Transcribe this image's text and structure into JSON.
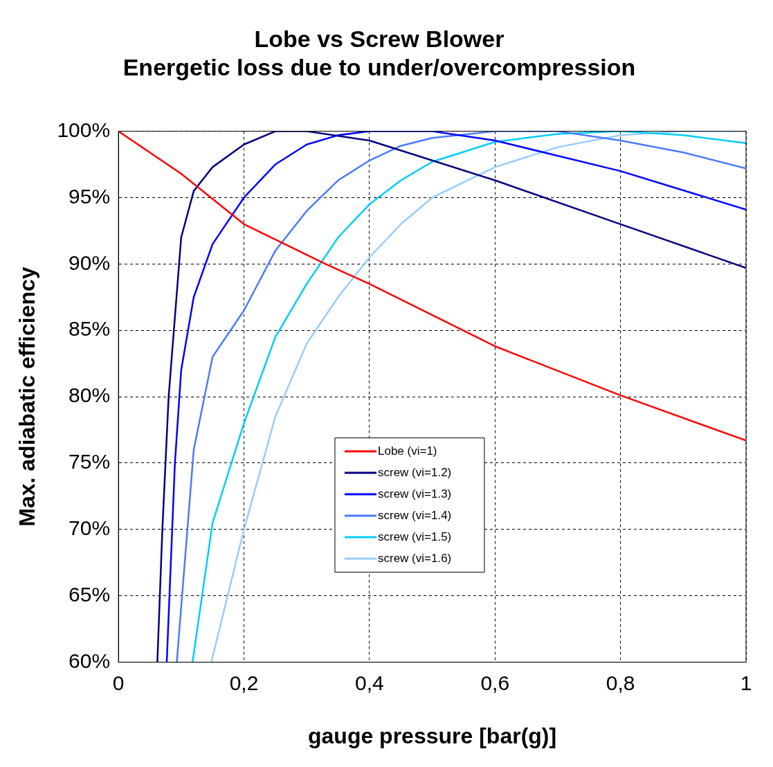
{
  "chart_data": {
    "type": "line",
    "title": [
      "Lobe vs Screw Blower",
      "Energetic loss due to under/overcompression"
    ],
    "xlabel": "gauge pressure [bar(g)]",
    "ylabel": "Max. adiabatic efficiency",
    "xlim": [
      0,
      1
    ],
    "xticks": [
      0,
      {
        "value": 0.2,
        "label": "0,2"
      },
      {
        "value": 0.4,
        "label": "0,4"
      },
      {
        "value": 0.6,
        "label": "0,6"
      },
      {
        "value": 0.8,
        "label": "0,8"
      },
      1
    ],
    "ylim": [
      60,
      100
    ],
    "yticks": [
      {
        "value": 60,
        "label": "60%"
      },
      {
        "value": 65,
        "label": "65%"
      },
      {
        "value": 70,
        "label": "70%"
      },
      {
        "value": 75,
        "label": "75%"
      },
      {
        "value": 80,
        "label": "80%"
      },
      {
        "value": 85,
        "label": "85%"
      },
      {
        "value": 90,
        "label": "90%"
      },
      {
        "value": 95,
        "label": "95%"
      },
      {
        "value": 100,
        "label": "100%"
      }
    ],
    "grid": true,
    "legend": "bottom",
    "marker": "none",
    "line_style": "solid",
    "series": [
      {
        "name": "Lobe (vi=1)",
        "color": "#ff0000",
        "x": [
          0,
          0.1,
          0.2,
          0.33,
          0.4,
          0.6,
          0.8,
          1
        ],
        "values": [
          100,
          96.8,
          93.0,
          90.0,
          88.5,
          83.8,
          80.1,
          76.7
        ]
      },
      {
        "name": "screw (vi=1.2)",
        "color": "#000080",
        "x": [
          0.062,
          0.07,
          0.08,
          0.1,
          0.12,
          0.15,
          0.2,
          0.25,
          0.3,
          0.4,
          0.5,
          0.6,
          0.8,
          1
        ],
        "values": [
          60,
          70,
          80,
          92,
          95.5,
          97.3,
          99,
          100,
          100,
          99.3,
          97.8,
          96.3,
          93,
          89.7
        ]
      },
      {
        "name": "screw (vi=1.3)",
        "color": "#0000ff",
        "x": [
          0.077,
          0.09,
          0.1,
          0.12,
          0.15,
          0.2,
          0.25,
          0.3,
          0.35,
          0.4,
          0.5,
          0.6,
          0.8,
          1
        ],
        "values": [
          60,
          75,
          82,
          87.5,
          91.5,
          95,
          97.5,
          99,
          99.7,
          100,
          100,
          99.3,
          97,
          94.1
        ]
      },
      {
        "name": "screw (vi=1.4)",
        "color": "#4a7bff",
        "x": [
          0.093,
          0.12,
          0.15,
          0.2,
          0.25,
          0.3,
          0.35,
          0.4,
          0.45,
          0.5,
          0.6,
          0.7,
          0.8,
          0.9,
          1
        ],
        "values": [
          60,
          76,
          83,
          86.5,
          91,
          94,
          96.3,
          97.8,
          98.9,
          99.5,
          100,
          100,
          99.3,
          98.4,
          97.2
        ]
      },
      {
        "name": "screw (vi=1.5)",
        "color": "#00ccff",
        "x": [
          0.118,
          0.15,
          0.2,
          0.25,
          0.3,
          0.35,
          0.4,
          0.45,
          0.5,
          0.6,
          0.7,
          0.8,
          0.9,
          1
        ],
        "values": [
          60,
          70.5,
          78,
          84.5,
          88.5,
          92,
          94.5,
          96.3,
          97.7,
          99.2,
          99.8,
          100,
          99.7,
          99.1
        ]
      },
      {
        "name": "screw (vi=1.6)",
        "color": "#99ccff",
        "x": [
          0.148,
          0.2,
          0.25,
          0.3,
          0.35,
          0.4,
          0.45,
          0.5,
          0.6,
          0.7,
          0.8,
          0.9,
          1
        ],
        "values": [
          60,
          70,
          78.5,
          84,
          87.5,
          90.5,
          93,
          95,
          97.3,
          98.8,
          99.7,
          100,
          100
        ]
      }
    ]
  }
}
